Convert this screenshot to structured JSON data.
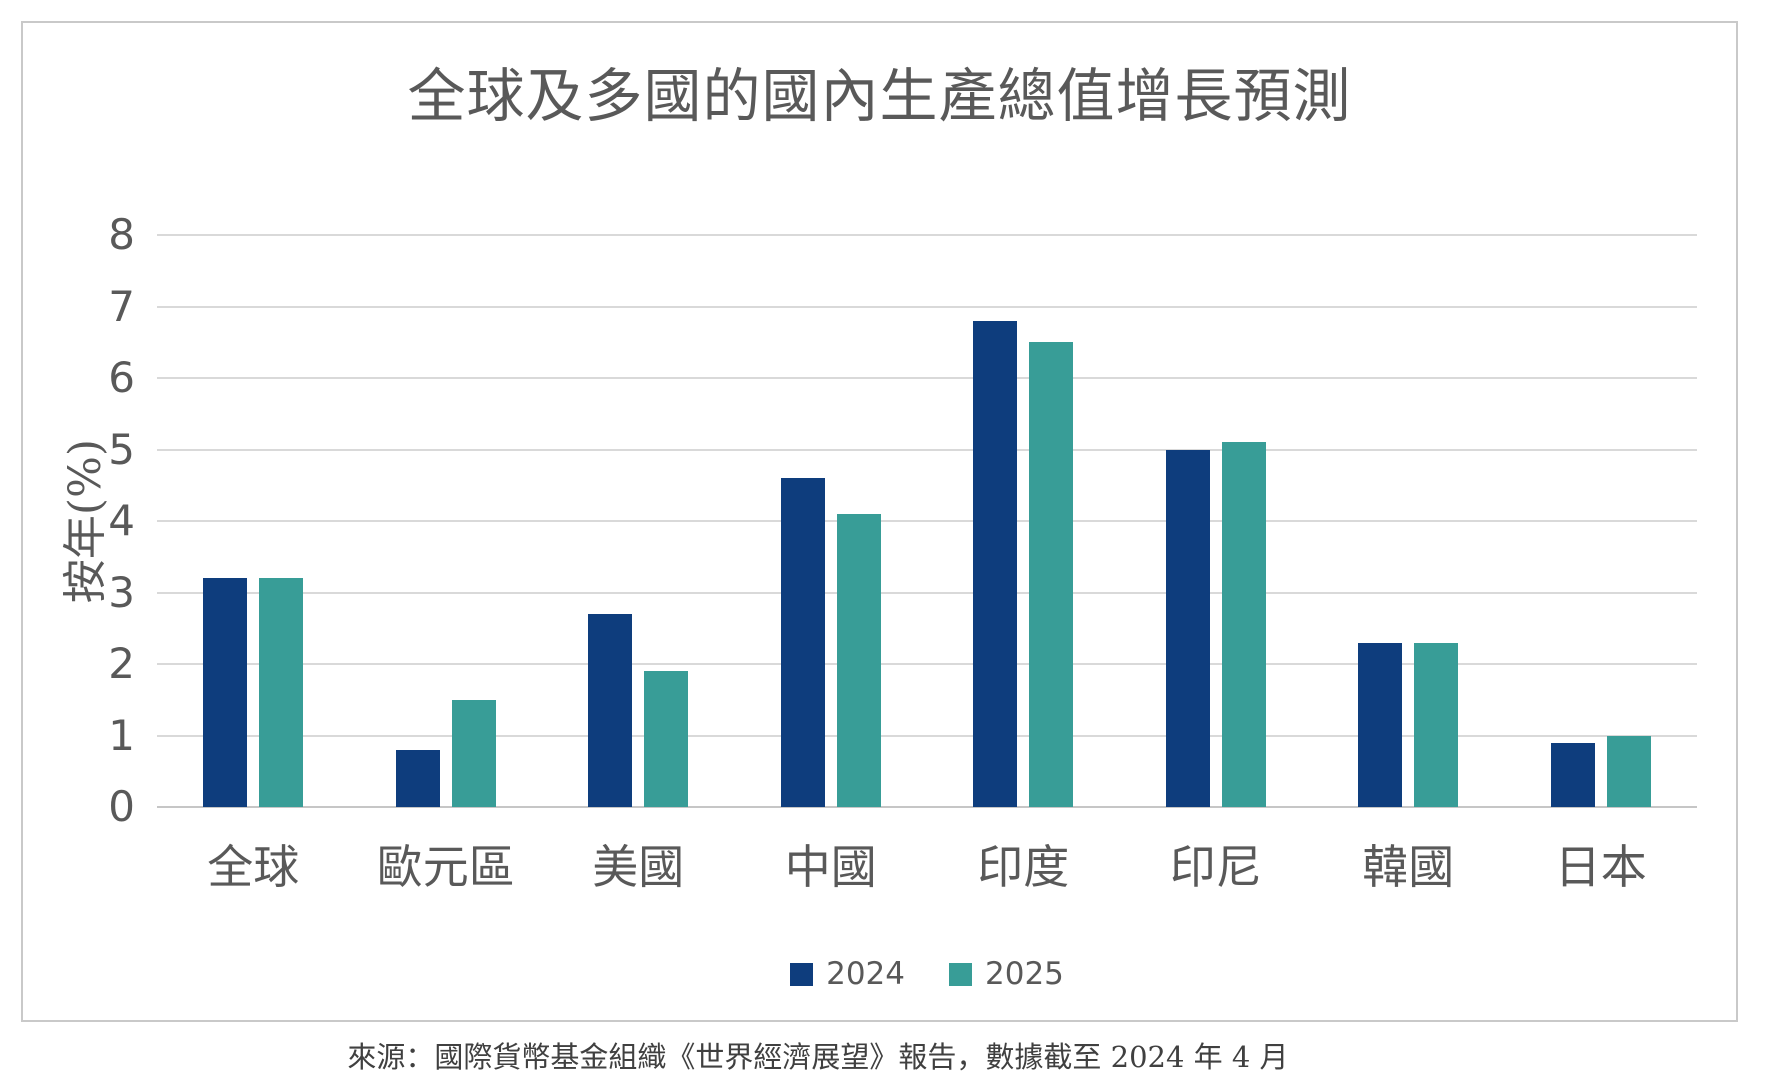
{
  "chart_data": {
    "type": "bar",
    "title": "全球及多國的國內生產總值增長預測",
    "xlabel": "",
    "ylabel": "按年(%)",
    "categories": [
      "全球",
      "歐元區",
      "美國",
      "中國",
      "印度",
      "印尼",
      "韓國",
      "日本"
    ],
    "series": [
      {
        "name": "2024",
        "color": "#0e3d7d",
        "values": [
          3.2,
          0.8,
          2.7,
          4.6,
          6.8,
          5.0,
          2.3,
          0.9
        ]
      },
      {
        "name": "2025",
        "color": "#389d97",
        "values": [
          3.2,
          1.5,
          1.9,
          4.1,
          6.5,
          5.1,
          2.3,
          1.0
        ]
      }
    ],
    "ylim": [
      0,
      8
    ],
    "yticks": [
      0,
      1,
      2,
      3,
      4,
      5,
      6,
      7,
      8
    ],
    "grid": true,
    "legend_position": "bottom-center"
  },
  "colors": {
    "series_2024": "#0e3d7d",
    "series_2025": "#389d97",
    "gridline": "#d9d9d9",
    "axis_text": "#595959",
    "title_text": "#595959",
    "card_border": "#c9c9c9",
    "source_text": "#404040"
  },
  "source_note": "來源：國際貨幣基金組織《世界經濟展望》報告，數據截至 2024 年 4 月"
}
